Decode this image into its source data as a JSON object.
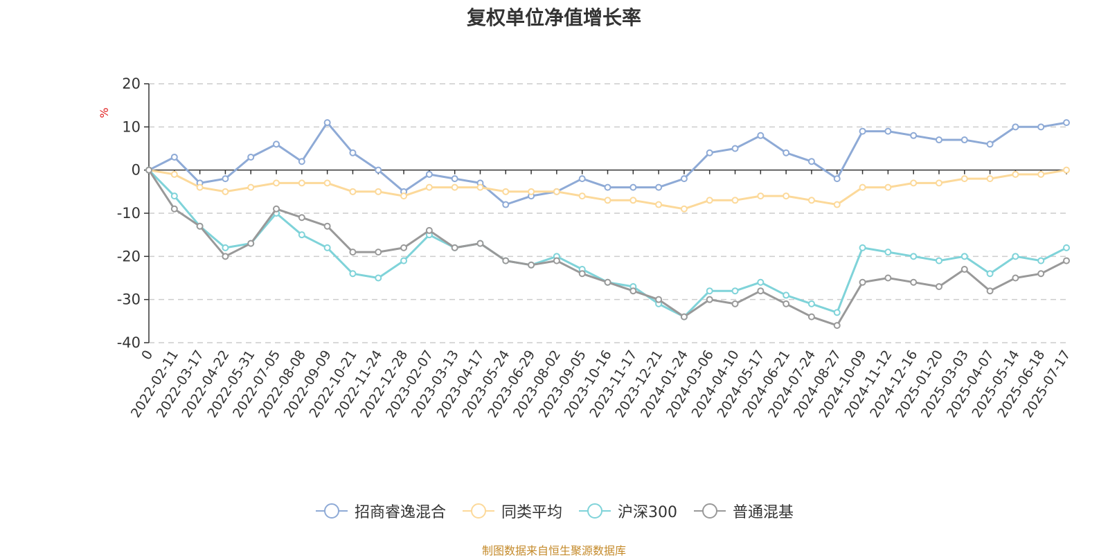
{
  "chart_data": {
    "type": "line",
    "title": "复权单位净值增长率",
    "ylabel": "%",
    "ylim": [
      -40,
      20
    ],
    "y_ticks": [
      20,
      10,
      0,
      -10,
      -20,
      -30,
      -40
    ],
    "grid": true,
    "legend_position": "bottom",
    "x_categories": [
      "0",
      "2022-02-11",
      "2022-03-17",
      "2022-04-22",
      "2022-05-31",
      "2022-07-05",
      "2022-08-08",
      "2022-09-09",
      "2022-10-21",
      "2022-11-24",
      "2022-12-28",
      "2023-02-07",
      "2023-03-13",
      "2023-04-17",
      "2023-05-24",
      "2023-06-29",
      "2023-08-02",
      "2023-09-05",
      "2023-10-16",
      "2023-11-17",
      "2023-12-21",
      "2024-01-24",
      "2024-03-06",
      "2024-04-10",
      "2024-05-17",
      "2024-06-21",
      "2024-07-24",
      "2024-08-27",
      "2024-10-09",
      "2024-11-12",
      "2024-12-16",
      "2025-01-20",
      "2025-03-03",
      "2025-04-07",
      "2025-05-14",
      "2025-06-18",
      "2025-07-17"
    ],
    "series": [
      {
        "name": "招商睿逸混合",
        "color": "#8eaad6",
        "values": [
          0,
          3,
          -3,
          -2,
          3,
          6,
          2,
          11,
          4,
          0,
          -5,
          -1,
          -2,
          -3,
          -8,
          -6,
          -5,
          -2,
          -4,
          -4,
          -4,
          -2,
          4,
          5,
          8,
          4,
          2,
          -2,
          9,
          9,
          8,
          7,
          7,
          6,
          10,
          10,
          11
        ]
      },
      {
        "name": "同类平均",
        "color": "#fcd99a",
        "values": [
          0,
          -1,
          -4,
          -5,
          -4,
          -3,
          -3,
          -3,
          -5,
          -5,
          -6,
          -4,
          -4,
          -4,
          -5,
          -5,
          -5,
          -6,
          -7,
          -7,
          -8,
          -9,
          -7,
          -7,
          -6,
          -6,
          -7,
          -8,
          -4,
          -4,
          -3,
          -3,
          -2,
          -2,
          -1,
          -1,
          0
        ]
      },
      {
        "name": "沪深300",
        "color": "#7fd3d9",
        "values": [
          0,
          -6,
          -13,
          -18,
          -17,
          -10,
          -15,
          -18,
          -24,
          -25,
          -21,
          -15,
          -18,
          -17,
          -21,
          -22,
          -20,
          -23,
          -26,
          -27,
          -31,
          -34,
          -28,
          -28,
          -26,
          -29,
          -31,
          -33,
          -18,
          -19,
          -20,
          -21,
          -20,
          -24,
          -20,
          -21,
          -18
        ]
      },
      {
        "name": "普通混基",
        "color": "#999999",
        "values": [
          0,
          -9,
          -13,
          -20,
          -17,
          -9,
          -11,
          -13,
          -19,
          -19,
          -18,
          -14,
          -18,
          -17,
          -21,
          -22,
          -21,
          -24,
          -26,
          -28,
          -30,
          -34,
          -30,
          -31,
          -28,
          -31,
          -34,
          -36,
          -26,
          -25,
          -26,
          -27,
          -23,
          -28,
          -25,
          -24,
          -21
        ]
      }
    ]
  },
  "source_note": "制图数据来自恒生聚源数据库"
}
